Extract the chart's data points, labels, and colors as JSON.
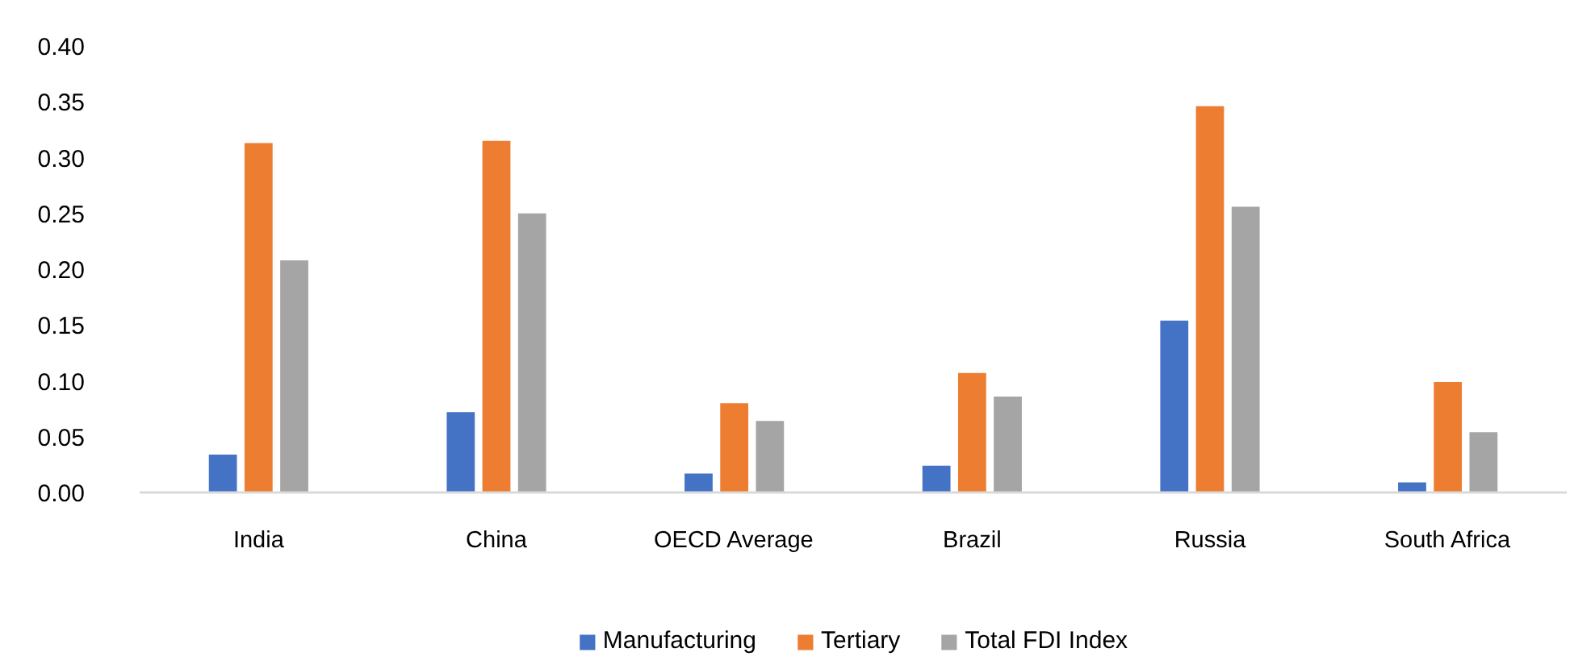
{
  "chart_data": {
    "type": "bar",
    "categories": [
      "India",
      "China",
      "OECD Average",
      "Brazil",
      "Russia",
      "South Africa"
    ],
    "series": [
      {
        "name": "Manufacturing",
        "color": "#4472c4",
        "values": [
          0.034,
          0.072,
          0.017,
          0.024,
          0.154,
          0.009
        ]
      },
      {
        "name": "Tertiary",
        "color": "#ed7d31",
        "values": [
          0.313,
          0.315,
          0.08,
          0.107,
          0.346,
          0.099
        ]
      },
      {
        "name": "Total FDI Index",
        "color": "#a5a5a5",
        "values": [
          0.208,
          0.25,
          0.064,
          0.086,
          0.256,
          0.054
        ]
      }
    ],
    "ylim": [
      0,
      0.4
    ],
    "yticks": [
      {
        "value": 0,
        "label": "0.00"
      },
      0.05,
      {
        "value": 0.1,
        "label": "0.10"
      },
      0.15,
      {
        "value": 0.2,
        "label": "0.20"
      },
      0.25,
      {
        "value": 0.3,
        "label": "0.30"
      },
      0.35,
      {
        "value": 0.4,
        "label": "0.40"
      }
    ],
    "legend": "bottom"
  }
}
